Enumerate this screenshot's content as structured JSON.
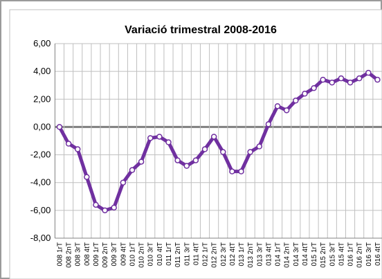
{
  "chart_data": {
    "type": "line",
    "title": "Variació trimestral 2008-2016",
    "categories": [
      "008 1rT",
      "008 2nT",
      "008 3rT",
      "008 4tT",
      "009 1rT",
      "009 2nT",
      "009 3rT",
      "009 4tT",
      "010 1rT",
      "010 2nT",
      "010 3rT",
      "010 4tT",
      "011 1rT",
      "011 2nT",
      "011 3rT",
      "011 4tT",
      "012 1rT",
      "012 2nT",
      "012 3rT",
      "012 4tT",
      "013 1rT",
      "013 2nT",
      "013 3rT",
      "013 4tT",
      "014 1rT",
      "014 2nT",
      "014 3rT",
      "014 4tT",
      "015 1rT",
      "015 2nT",
      "015 3rT",
      "015 4tT",
      "016 1rT",
      "016 2nT",
      "016 3rT",
      "016 4tT"
    ],
    "series": [
      {
        "name": "Variació trimestral",
        "color": "#7030a0",
        "values": [
          0.0,
          -1.2,
          -1.6,
          -3.6,
          -5.6,
          -6.0,
          -5.8,
          -4.0,
          -3.1,
          -2.5,
          -0.8,
          -0.7,
          -1.1,
          -2.4,
          -2.8,
          -2.4,
          -1.6,
          -0.7,
          -1.8,
          -3.2,
          -3.2,
          -1.8,
          -1.4,
          0.2,
          1.5,
          1.2,
          1.9,
          2.4,
          2.8,
          3.4,
          3.2,
          3.5,
          3.2,
          3.5,
          3.9,
          3.4
        ]
      }
    ],
    "ylim": [
      -8,
      6
    ],
    "yticks": [
      {
        "value": -8,
        "label": "-8,00"
      },
      {
        "value": -6,
        "label": "-6,00"
      },
      {
        "value": -4,
        "label": "-4,00"
      },
      {
        "value": -2,
        "label": "-2,00"
      },
      {
        "value": 0,
        "label": "0,00"
      },
      {
        "value": 2,
        "label": "2,00"
      },
      {
        "value": 4,
        "label": "4,00"
      },
      {
        "value": 6,
        "label": "6,00"
      }
    ],
    "grid": true
  }
}
